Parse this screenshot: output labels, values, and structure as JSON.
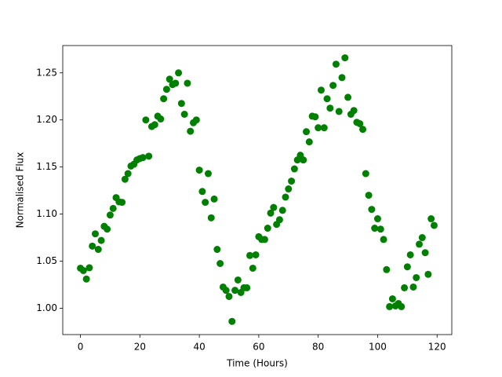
{
  "chart_data": {
    "type": "scatter",
    "xlabel": "Time (Hours)",
    "ylabel": "Normalised Flux",
    "color": "#008000",
    "x": [
      0,
      1,
      2,
      3,
      4,
      5,
      6,
      7,
      8,
      9,
      10,
      11,
      12,
      13,
      14,
      15,
      16,
      17,
      18,
      19,
      20,
      21,
      22,
      23,
      24,
      25,
      26,
      27,
      28,
      29,
      30,
      31,
      32,
      33,
      34,
      35,
      36,
      37,
      38,
      39,
      40,
      41,
      42,
      43,
      44,
      45,
      46,
      47,
      48,
      49,
      50,
      51,
      52,
      53,
      54,
      55,
      56,
      57,
      58,
      59,
      60,
      61,
      62,
      63,
      64,
      65,
      66,
      67,
      68,
      69,
      70,
      71,
      72,
      73,
      74,
      75,
      76,
      77,
      78,
      79,
      80,
      81,
      82,
      83,
      84,
      85,
      86,
      87,
      88,
      89,
      90,
      91,
      92,
      93,
      94,
      95,
      96,
      97,
      98,
      99,
      100,
      101,
      102,
      103,
      104,
      105,
      106,
      107,
      108,
      109,
      110,
      111,
      112,
      113,
      114,
      115,
      116,
      117,
      118,
      119
    ],
    "values": [
      1.0425,
      1.04,
      1.031,
      1.043,
      1.066,
      1.079,
      1.0625,
      1.072,
      1.087,
      1.084,
      1.099,
      1.106,
      1.1175,
      1.113,
      1.1125,
      1.137,
      1.143,
      1.151,
      1.153,
      1.1575,
      1.159,
      1.16,
      1.2,
      1.1615,
      1.193,
      1.195,
      1.204,
      1.201,
      1.2225,
      1.2325,
      1.2433,
      1.2375,
      1.239,
      1.25,
      1.2175,
      1.206,
      1.239,
      1.188,
      1.197,
      1.2,
      1.1467,
      1.124,
      1.1125,
      1.143,
      1.096,
      1.116,
      1.0625,
      1.0475,
      1.0225,
      1.019,
      1.0125,
      0.986,
      1.019,
      1.03,
      1.0167,
      1.0217,
      1.0217,
      1.056,
      1.0425,
      1.0567,
      1.076,
      1.073,
      1.073,
      1.085,
      1.101,
      1.107,
      1.089,
      1.094,
      1.104,
      1.118,
      1.1267,
      1.135,
      1.148,
      1.1575,
      1.1625,
      1.1575,
      1.1875,
      1.1767,
      1.204,
      1.2033,
      1.1917,
      1.2317,
      1.1917,
      1.2225,
      1.2125,
      1.2367,
      1.2592,
      1.209,
      1.245,
      1.266,
      1.224,
      1.206,
      1.21,
      1.1975,
      1.196,
      1.19,
      1.143,
      1.12,
      1.105,
      1.085,
      1.095,
      1.084,
      1.073,
      1.041,
      1.0017,
      1.01,
      1.0025,
      1.005,
      1.0017,
      1.0217,
      1.044,
      1.0567,
      1.0225,
      1.0325,
      1.068,
      1.075,
      1.059,
      1.036,
      1.095,
      1.088
    ],
    "xlim": [
      -5.95,
      124.95
    ],
    "ylim": [
      0.972,
      1.279
    ],
    "xticks": [
      0,
      20,
      40,
      60,
      80,
      100,
      120
    ],
    "yticks": [
      {
        "value": 1.0,
        "label": "1.00"
      },
      1.05,
      {
        "value": 1.1,
        "label": "1.10"
      },
      1.15,
      {
        "value": 1.2,
        "label": "1.20"
      },
      1.25
    ]
  }
}
